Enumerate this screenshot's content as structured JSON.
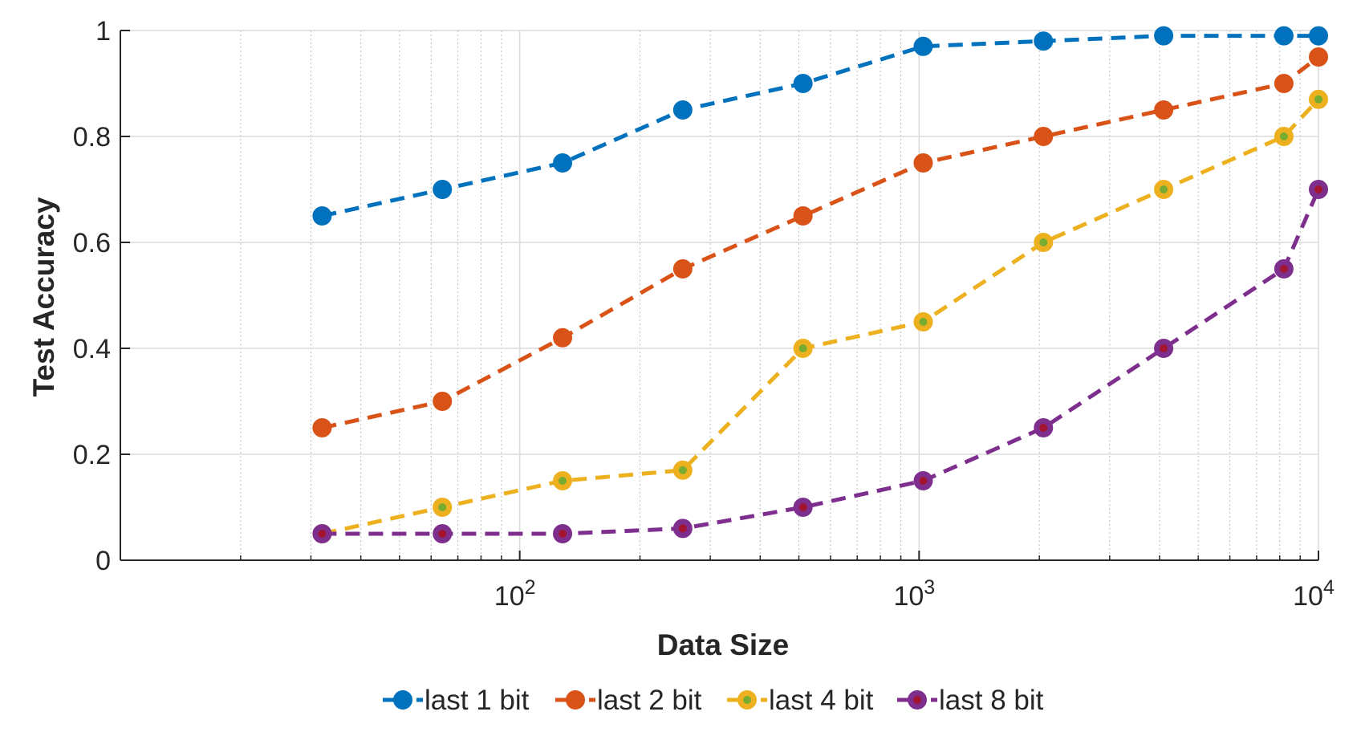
{
  "chart_data": {
    "type": "line",
    "title": "",
    "xlabel": "Data Size",
    "ylabel": "Test Accuracy",
    "xscale": "log",
    "xlim": [
      10,
      10000
    ],
    "ylim": [
      0,
      1
    ],
    "grid": true,
    "legend_position": "bottom",
    "x": [
      32,
      64,
      128,
      256,
      512,
      1024,
      2048,
      4096,
      8192,
      10000
    ],
    "x_ticks": [
      {
        "base": "10",
        "exp": "2",
        "value": 100
      },
      {
        "base": "10",
        "exp": "3",
        "value": 1000
      },
      {
        "base": "10",
        "exp": "4",
        "value": 10000
      }
    ],
    "y_ticks": [
      {
        "label": "0",
        "value": 0
      },
      {
        "label": "0.2",
        "value": 0.2
      },
      {
        "label": "0.4",
        "value": 0.4
      },
      {
        "label": "0.6",
        "value": 0.6
      },
      {
        "label": "0.8",
        "value": 0.8
      },
      {
        "label": "1",
        "value": 1
      }
    ],
    "series": [
      {
        "name": "last 1 bit",
        "color": "#0072BD",
        "marker_inner": "#0072BD",
        "values": [
          0.65,
          0.7,
          0.75,
          0.85,
          0.9,
          0.97,
          0.98,
          0.99,
          0.99,
          0.99
        ]
      },
      {
        "name": "last 2 bit",
        "color": "#D95319",
        "marker_inner": "#D95319",
        "values": [
          0.25,
          0.3,
          0.42,
          0.55,
          0.65,
          0.75,
          0.8,
          0.85,
          0.9,
          0.95
        ]
      },
      {
        "name": "last 4 bit",
        "color": "#EDB120",
        "marker_inner": "#77AC30",
        "values": [
          0.05,
          0.1,
          0.15,
          0.17,
          0.4,
          0.45,
          0.6,
          0.7,
          0.8,
          0.87
        ]
      },
      {
        "name": "last 8 bit",
        "color": "#7E2F8E",
        "marker_inner": "#A2142F",
        "values": [
          0.05,
          0.05,
          0.05,
          0.06,
          0.1,
          0.15,
          0.25,
          0.4,
          0.55,
          0.7
        ]
      }
    ]
  }
}
